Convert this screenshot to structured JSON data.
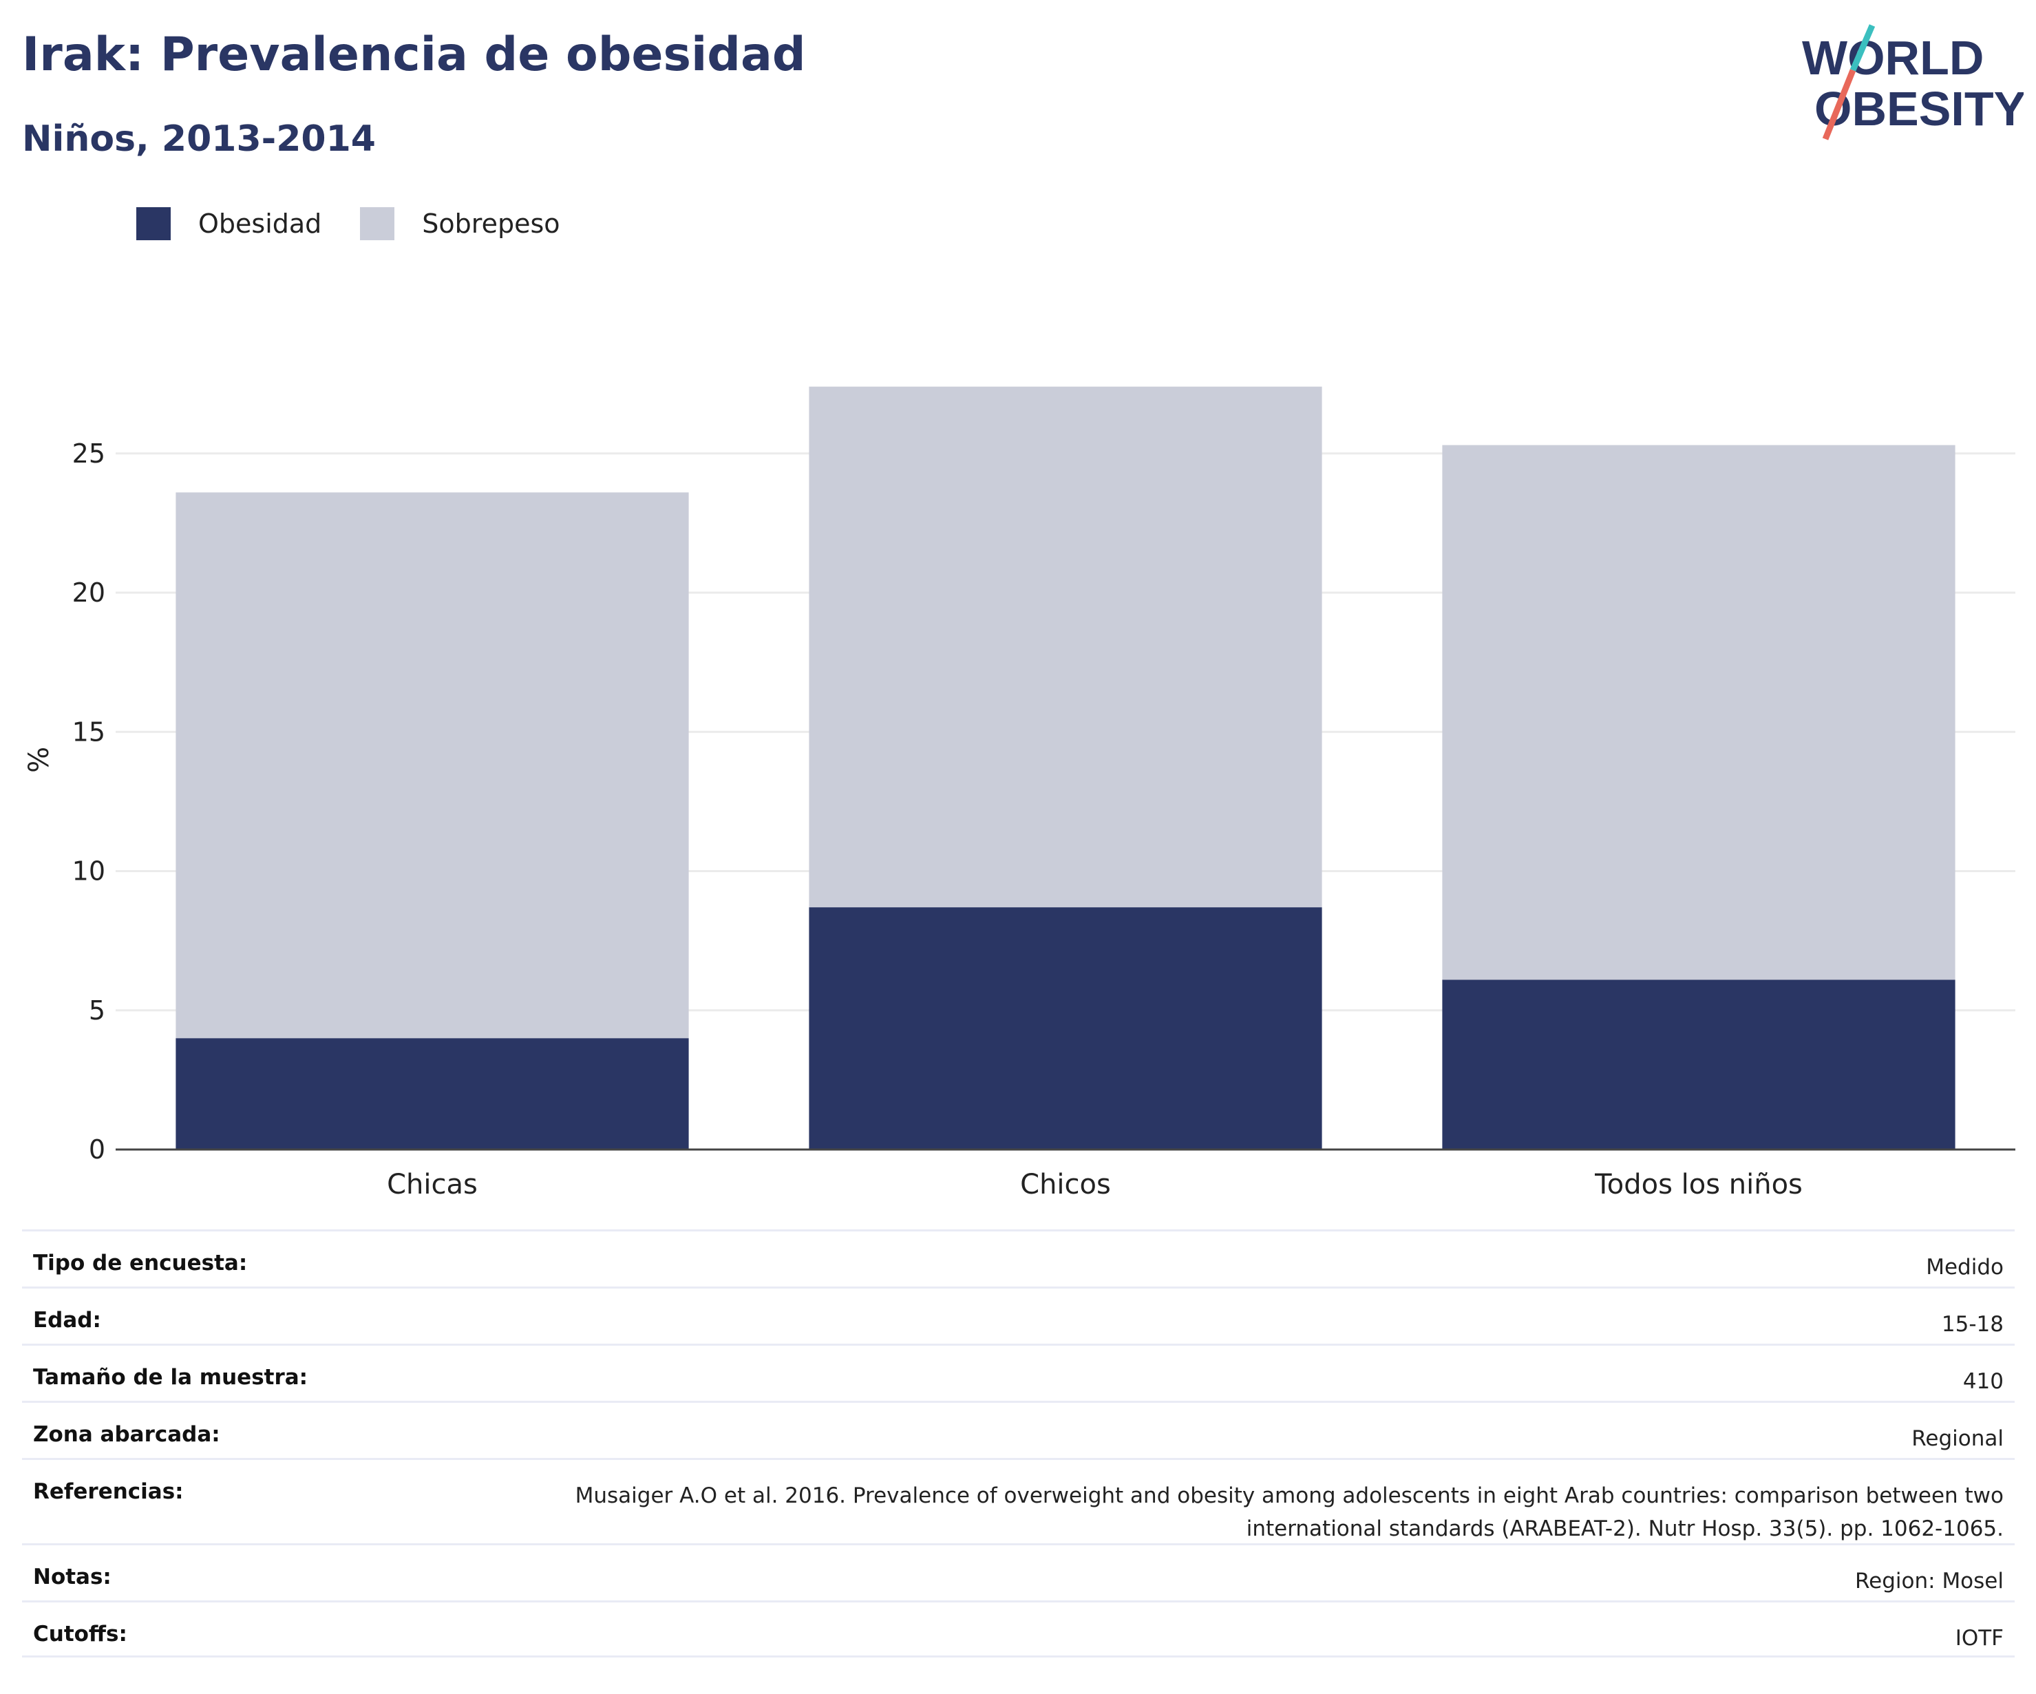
{
  "header": {
    "title": "Irak: Prevalencia de obesidad",
    "subtitle": "Niños, 2013-2014"
  },
  "logo": {
    "line1": "WORLD",
    "line2": "OBESITY",
    "colors": {
      "text": "#2a3664",
      "slash_top": "#3bbfbf",
      "slash_bottom": "#e8685a"
    }
  },
  "colors": {
    "obesity": "#2a3664",
    "overweight": "#cacdd9",
    "grid": "#ebebeb",
    "axis": "#444444"
  },
  "chart_data": {
    "type": "bar",
    "stacked": true,
    "categories": [
      "Chicas",
      "Chicos",
      "Todos los niños"
    ],
    "series": [
      {
        "name": "Obesidad",
        "values": [
          4.0,
          8.7,
          6.1
        ]
      },
      {
        "name": "Sobrepeso",
        "values": [
          19.6,
          18.7,
          19.2
        ]
      }
    ],
    "totals": [
      23.6,
      27.4,
      25.3
    ],
    "ylabel": "%",
    "xlabel": "",
    "ylim": [
      0,
      27.5
    ],
    "yticks": [
      0,
      5,
      10,
      15,
      20,
      25
    ],
    "grid": true,
    "legend_position": "top-left"
  },
  "metadata": [
    {
      "key": "Tipo de encuesta:",
      "value": "Medido"
    },
    {
      "key": "Edad:",
      "value": "15-18"
    },
    {
      "key": "Tamaño de la muestra:",
      "value": "410"
    },
    {
      "key": "Zona abarcada:",
      "value": "Regional"
    },
    {
      "key": "Referencias:",
      "value": "Musaiger A.O et al. 2016. Prevalence of overweight and obesity among adolescents in eight Arab countries: comparison between two international standards (ARABEAT-2). Nutr Hosp. 33(5). pp. 1062-1065."
    },
    {
      "key": "Notas:",
      "value": "Region: Mosel"
    },
    {
      "key": "Cutoffs:",
      "value": "IOTF"
    }
  ]
}
